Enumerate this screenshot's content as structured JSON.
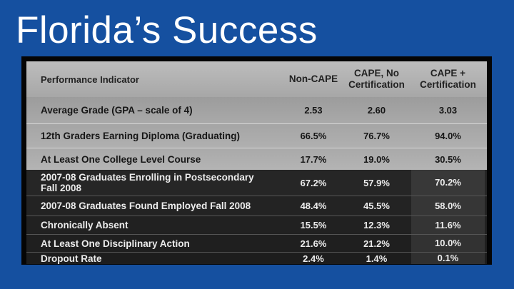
{
  "slide": {
    "title": "Florida’s Success"
  },
  "table": {
    "headers": {
      "indicator": "Performance Indicator",
      "col1": "Non-CAPE",
      "col2_line1": "CAPE, No",
      "col2_line2": "Certification",
      "col3_line1": "CAPE +",
      "col3_line2": "Certification"
    },
    "rows": [
      {
        "indicator": "Average Grade (GPA – scale of 4)",
        "non_cape": "2.53",
        "cape_no_cert": "2.60",
        "cape_cert": "3.03"
      },
      {
        "indicator": "12th Graders Earning Diploma (Graduating)",
        "non_cape": "66.5%",
        "cape_no_cert": "76.7%",
        "cape_cert": "94.0%"
      },
      {
        "indicator": "At Least One College Level Course",
        "non_cape": "17.7%",
        "cape_no_cert": "19.0%",
        "cape_cert": "30.5%"
      },
      {
        "indicator_line1": "2007-08 Graduates Enrolling in Postsecondary",
        "indicator_line2": "Fall 2008",
        "non_cape": "67.2%",
        "cape_no_cert": "57.9%",
        "cape_cert": "70.2%"
      },
      {
        "indicator": "2007-08 Graduates Found Employed Fall 2008",
        "non_cape": "48.4%",
        "cape_no_cert": "45.5%",
        "cape_cert": "58.0%"
      },
      {
        "indicator": "Chronically Absent",
        "non_cape": "15.5%",
        "cape_no_cert": "12.3%",
        "cape_cert": "11.6%"
      },
      {
        "indicator": "At Least One Disciplinary Action",
        "non_cape": "21.6%",
        "cape_no_cert": "21.2%",
        "cape_cert": "10.0%"
      },
      {
        "indicator": "Dropout Rate",
        "non_cape": "2.4%",
        "cape_no_cert": "1.4%",
        "cape_cert": "0.1%"
      }
    ]
  },
  "colors": {
    "background": "#1550a0",
    "light_row": "#a8a8a8",
    "dark_row": "#262626",
    "highlight_cell": "#3a3a3a"
  }
}
